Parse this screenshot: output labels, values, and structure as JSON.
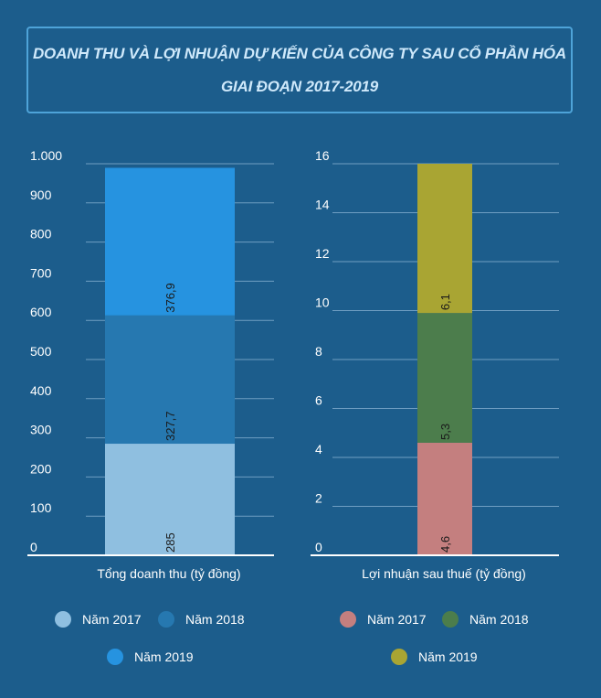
{
  "title": {
    "line1": "DOANH THU VÀ LỢI NHUẬN DỰ KIẾN CỦA CÔNG TY SAU CỔ PHẦN HÓA",
    "line2": "GIAI ĐOẠN 2017-2019"
  },
  "chart_data": [
    {
      "type": "bar",
      "stacked": true,
      "title": "",
      "xlabel": "Tổng doanh thu (tỷ đồng)",
      "ylabel": "",
      "ylim": [
        0,
        1000
      ],
      "yticks": [
        0,
        100,
        200,
        300,
        400,
        500,
        600,
        700,
        800,
        900,
        1000
      ],
      "ytick_labels": [
        "0",
        "100",
        "200",
        "300",
        "400",
        "500",
        "600",
        "700",
        "800",
        "900",
        "1.000"
      ],
      "grid": true,
      "legend_position": "bottom",
      "series": [
        {
          "name": "Năm 2017",
          "value": 285,
          "label": "285",
          "color": "#8fbfe0"
        },
        {
          "name": "Năm 2018",
          "value": 327.7,
          "label": "327,7",
          "color": "#2678b0"
        },
        {
          "name": "Năm 2019",
          "value": 376.9,
          "label": "376,9",
          "color": "#2693e0"
        }
      ]
    },
    {
      "type": "bar",
      "stacked": true,
      "title": "",
      "xlabel": "Lợi nhuận sau thuế (tỷ đồng)",
      "ylabel": "",
      "ylim": [
        0,
        16
      ],
      "yticks": [
        0,
        2,
        4,
        6,
        8,
        10,
        12,
        14,
        16
      ],
      "ytick_labels": [
        "0",
        "2",
        "4",
        "6",
        "8",
        "10",
        "12",
        "14",
        "16"
      ],
      "grid": true,
      "legend_position": "bottom",
      "series": [
        {
          "name": "Năm 2017",
          "value": 4.6,
          "label": "4,6",
          "color": "#c47f7f"
        },
        {
          "name": "Năm 2018",
          "value": 5.3,
          "label": "5,3",
          "color": "#4c7d4c"
        },
        {
          "name": "Năm 2019",
          "value": 6.1,
          "label": "6,1",
          "color": "#a9a533"
        }
      ]
    }
  ]
}
